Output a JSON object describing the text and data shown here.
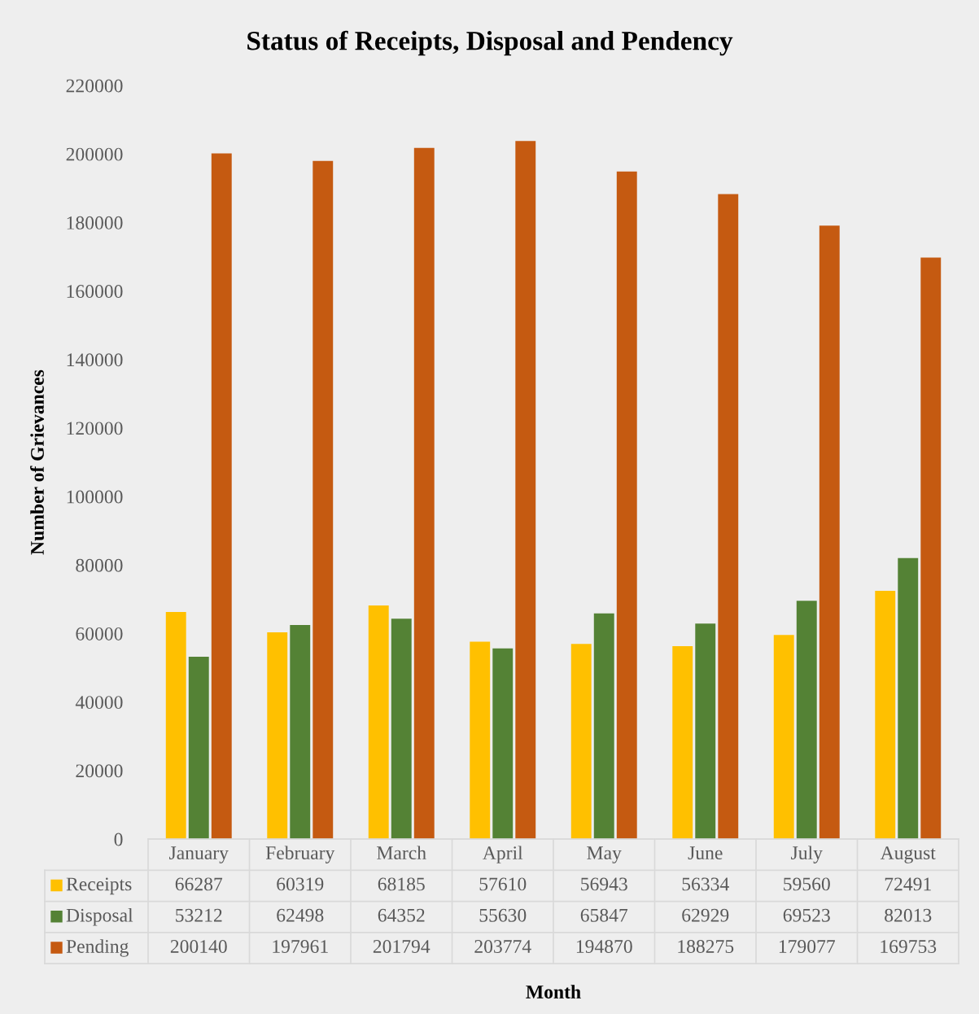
{
  "chart_data": {
    "type": "bar",
    "title": "Status of Receipts, Disposal and Pendency",
    "annotations": [
      "Month"
    ],
    "ylabel": "Number of Grievances",
    "categories": [
      "January",
      "February",
      "March",
      "April",
      "May",
      "June",
      "July",
      "August"
    ],
    "series": [
      {
        "name": "Receipts",
        "color": "#ffc000",
        "values": [
          66287,
          60319,
          68185,
          57610,
          56943,
          56334,
          59560,
          72491
        ]
      },
      {
        "name": "Disposal",
        "color": "#548235",
        "values": [
          53212,
          62498,
          64352,
          55630,
          65847,
          62929,
          69523,
          82013
        ]
      },
      {
        "name": "Pending",
        "color": "#c55a11",
        "values": [
          200140,
          197961,
          201794,
          203774,
          194870,
          188275,
          179077,
          169753
        ]
      }
    ],
    "ylim": [
      0,
      220000
    ],
    "yticks": [
      0,
      20000,
      40000,
      60000,
      80000,
      100000,
      120000,
      140000,
      160000,
      180000,
      200000,
      220000
    ],
    "grid": false,
    "legend": "bottom",
    "data_labels": true
  }
}
